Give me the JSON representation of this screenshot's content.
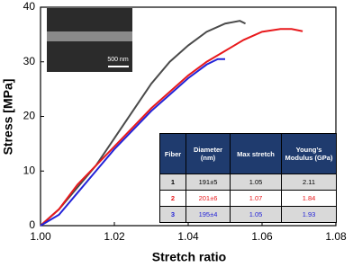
{
  "chart_data": {
    "type": "line",
    "xlabel": "Stretch ratio",
    "ylabel": "Stress [MPa]",
    "xlim": [
      1.0,
      1.08
    ],
    "ylim": [
      0,
      40
    ],
    "xticks": [
      {
        "value": 1.0,
        "label": "1.00"
      },
      {
        "value": 1.02,
        "label": "1.02"
      },
      {
        "value": 1.04,
        "label": "1.04"
      },
      {
        "value": 1.06,
        "label": "1.06"
      },
      {
        "value": 1.08,
        "label": "1.08"
      }
    ],
    "yticks": [
      0,
      10,
      20,
      30,
      40
    ],
    "series": [
      {
        "color": "#4a4a4a",
        "x": [
          1.0,
          1.005,
          1.01,
          1.015,
          1.02,
          1.025,
          1.03,
          1.035,
          1.04,
          1.045,
          1.05,
          1.054,
          1.0555
        ],
        "values": [
          0,
          3,
          7,
          11,
          16,
          21,
          26,
          30,
          33,
          35.5,
          37,
          37.5,
          37
        ]
      },
      {
        "color": "#e8191c",
        "x": [
          1.0,
          1.005,
          1.01,
          1.015,
          1.02,
          1.025,
          1.03,
          1.035,
          1.04,
          1.045,
          1.05,
          1.055,
          1.06,
          1.065,
          1.068,
          1.071
        ],
        "values": [
          0,
          3,
          7.5,
          11,
          14.5,
          18,
          21.5,
          24.5,
          27.5,
          30,
          32,
          34,
          35.5,
          36,
          36,
          35.6
        ]
      },
      {
        "color": "#2323d8",
        "x": [
          1.0,
          1.005,
          1.01,
          1.015,
          1.02,
          1.025,
          1.03,
          1.035,
          1.04,
          1.045,
          1.048,
          1.05
        ],
        "values": [
          0,
          2,
          6,
          10,
          14,
          17.5,
          21,
          24,
          27,
          29.5,
          30.5,
          30.5
        ]
      }
    ],
    "inset": {
      "scale_bar": "500 nm"
    }
  },
  "table": {
    "header": [
      "Fiber",
      "Diameter (nm)",
      "Max stretch",
      "Young’s Modulus (GPa)"
    ],
    "rows": [
      {
        "color": "#000000",
        "cells": [
          "1",
          "191±5",
          "1.05",
          "2.11"
        ]
      },
      {
        "color": "#e8191c",
        "cells": [
          "2",
          "201±6",
          "1.07",
          "1.84"
        ]
      },
      {
        "color": "#2323d8",
        "cells": [
          "3",
          "195±4",
          "1.05",
          "1.93"
        ]
      }
    ]
  }
}
